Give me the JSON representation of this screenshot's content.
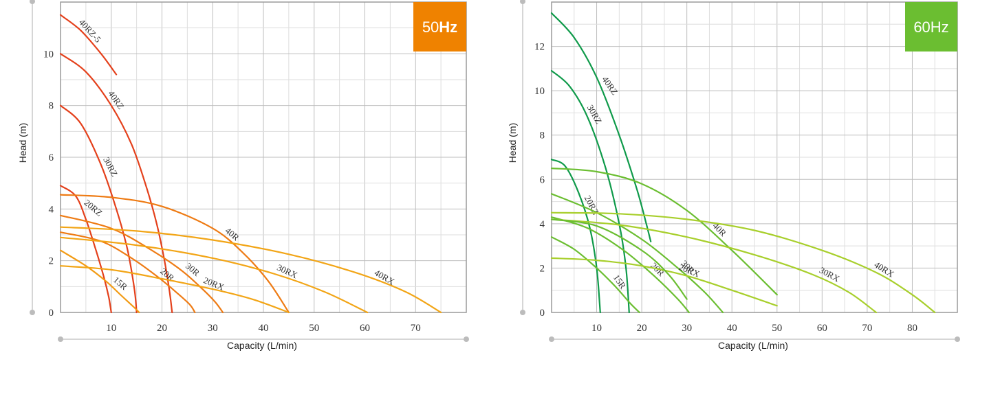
{
  "chart_data": [
    {
      "type": "line",
      "badge": {
        "prefix": "50",
        "suffix": "Hz",
        "color": "#EF8200"
      },
      "xlabel": "Capacity (L/min)",
      "ylabel": "Head (m)",
      "xlim": [
        0,
        80
      ],
      "ylim": [
        0,
        12
      ],
      "xticks": [
        10,
        20,
        30,
        40,
        50,
        60,
        70
      ],
      "yticks": [
        0,
        2,
        4,
        6,
        8,
        10
      ],
      "grid": true,
      "series": [
        {
          "name": "40RZ-5",
          "color": "#E4401B",
          "x": [
            0,
            4,
            8,
            11
          ],
          "y": [
            11.5,
            10.9,
            10.0,
            9.2
          ]
        },
        {
          "name": "40RZ",
          "color": "#E4401B",
          "x": [
            0,
            5,
            10,
            14,
            17,
            19,
            20.5,
            21.5,
            22
          ],
          "y": [
            10.0,
            9.3,
            8.0,
            6.5,
            4.8,
            3.4,
            2.0,
            0.8,
            0
          ]
        },
        {
          "name": "30RZ",
          "color": "#E4401B",
          "x": [
            0,
            4,
            8,
            11,
            13,
            14,
            14.7,
            15
          ],
          "y": [
            8.0,
            7.3,
            5.7,
            4.0,
            2.6,
            1.6,
            0.7,
            0
          ]
        },
        {
          "name": "20RZ",
          "color": "#E4401B",
          "x": [
            0,
            3,
            5,
            7,
            8.5,
            9.5,
            10
          ],
          "y": [
            4.9,
            4.5,
            3.6,
            2.4,
            1.4,
            0.6,
            0
          ]
        },
        {
          "name": "40R",
          "color": "#EE7B14",
          "x": [
            0,
            10,
            20,
            30,
            36,
            41,
            45
          ],
          "y": [
            4.55,
            4.45,
            4.1,
            3.25,
            2.3,
            1.2,
            0
          ]
        },
        {
          "name": "30R",
          "color": "#EE7B14",
          "x": [
            0,
            10,
            18,
            24,
            28,
            30.5,
            32
          ],
          "y": [
            3.75,
            3.25,
            2.4,
            1.6,
            0.9,
            0.4,
            0
          ]
        },
        {
          "name": "20R",
          "color": "#EE7B14",
          "x": [
            0,
            8,
            14,
            19,
            23,
            25.5,
            26.5
          ],
          "y": [
            3.1,
            2.75,
            2.1,
            1.4,
            0.75,
            0.3,
            0
          ]
        },
        {
          "name": "15R",
          "color": "#F29B14",
          "x": [
            0,
            5,
            9,
            12,
            14.5,
            15.5
          ],
          "y": [
            2.4,
            1.8,
            1.2,
            0.65,
            0.2,
            0
          ]
        },
        {
          "name": "20RX",
          "color": "#F2A516",
          "x": [
            0,
            10,
            20,
            30,
            38,
            45
          ],
          "y": [
            1.8,
            1.65,
            1.3,
            0.9,
            0.5,
            0
          ]
        },
        {
          "name": "30RX",
          "color": "#F2A516",
          "x": [
            0,
            15,
            30,
            42,
            52,
            60.5
          ],
          "y": [
            2.9,
            2.6,
            2.1,
            1.5,
            0.8,
            0
          ]
        },
        {
          "name": "40RX",
          "color": "#F2A516",
          "x": [
            0,
            15,
            30,
            45,
            58,
            68,
            75
          ],
          "y": [
            3.3,
            3.15,
            2.8,
            2.25,
            1.55,
            0.8,
            0
          ]
        }
      ]
    },
    {
      "type": "line",
      "badge": {
        "prefix": "60Hz",
        "suffix": "",
        "color": "#6BBE31"
      },
      "xlabel": "Capacity (L/min)",
      "ylabel": "Head (m)",
      "xlim": [
        0,
        90
      ],
      "ylim": [
        0,
        14
      ],
      "xticks": [
        10,
        20,
        30,
        40,
        50,
        60,
        70,
        80
      ],
      "yticks": [
        0,
        2,
        4,
        6,
        8,
        10,
        12
      ],
      "grid": true,
      "series": [
        {
          "name": "40RZ",
          "color": "#0F9A4A",
          "x": [
            0,
            5,
            10,
            15,
            19,
            21,
            22
          ],
          "y": [
            13.5,
            12.4,
            10.6,
            8.0,
            5.5,
            4.0,
            3.2
          ]
        },
        {
          "name": "30RZ",
          "color": "#0F9A4A",
          "x": [
            0,
            4,
            8,
            12,
            15,
            16.5,
            17.2
          ],
          "y": [
            10.9,
            10.2,
            8.8,
            6.5,
            4.0,
            2.0,
            0
          ]
        },
        {
          "name": "20RZ",
          "color": "#0F9A4A",
          "x": [
            0,
            3,
            6,
            8.5,
            10,
            10.8
          ],
          "y": [
            6.9,
            6.6,
            5.4,
            3.8,
            2.0,
            0
          ]
        },
        {
          "name": "40R",
          "color": "#6BBE31",
          "x": [
            0,
            10,
            20,
            30,
            40,
            50
          ],
          "y": [
            6.5,
            6.35,
            5.8,
            4.6,
            2.8,
            0.8
          ]
        },
        {
          "name": "30R",
          "color": "#6BBE31",
          "x": [
            0,
            10,
            20,
            28,
            34,
            38
          ],
          "y": [
            5.35,
            4.5,
            3.3,
            2.0,
            0.9,
            0
          ]
        },
        {
          "name": "20R",
          "color": "#6BBE31",
          "x": [
            0,
            8,
            16,
            23,
            28,
            30.5
          ],
          "y": [
            4.3,
            3.8,
            2.8,
            1.6,
            0.6,
            0
          ]
        },
        {
          "name": "15R",
          "color": "#6BBE31",
          "x": [
            0,
            5,
            10,
            14,
            17.5,
            19.5
          ],
          "y": [
            3.4,
            2.85,
            2.0,
            1.2,
            0.4,
            0
          ]
        },
        {
          "name": "20RX",
          "color": "#A8CF2C",
          "x": [
            0,
            10,
            20,
            30,
            40,
            50
          ],
          "y": [
            2.45,
            2.35,
            2.1,
            1.65,
            1.0,
            0.3
          ]
        },
        {
          "name": "30RX",
          "color": "#A8CF2C",
          "x": [
            0,
            15,
            30,
            45,
            58,
            66,
            72
          ],
          "y": [
            4.2,
            3.95,
            3.4,
            2.6,
            1.7,
            0.9,
            0
          ]
        },
        {
          "name": "40RX",
          "color": "#A8CF2C",
          "x": [
            0,
            15,
            30,
            45,
            60,
            72,
            80,
            85
          ],
          "y": [
            4.5,
            4.45,
            4.2,
            3.7,
            2.8,
            1.8,
            0.8,
            0
          ]
        },
        {
          "name": "",
          "color": "#6BBE31",
          "x": [
            0,
            10,
            20,
            26,
            30
          ],
          "y": [
            4.2,
            3.9,
            2.8,
            1.7,
            0.6
          ]
        }
      ]
    }
  ]
}
